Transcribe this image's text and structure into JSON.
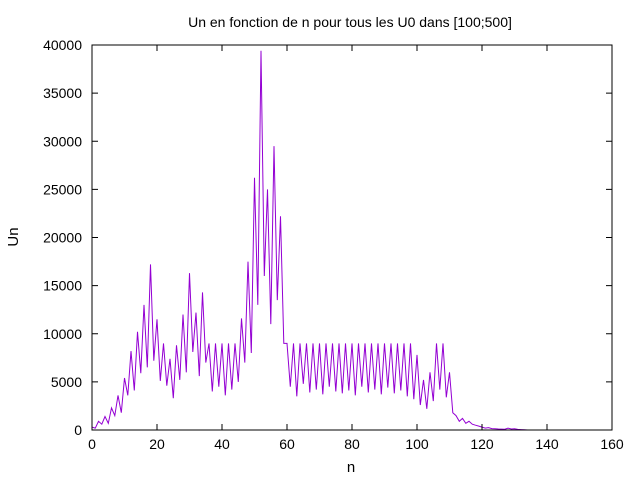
{
  "chart_data": {
    "type": "line",
    "title": "Un en fonction de n pour tous les U0 dans [100;500]",
    "xlabel": "n",
    "ylabel": "Un",
    "xlim": [
      0,
      160
    ],
    "ylim": [
      0,
      40000
    ],
    "xticks": [
      0,
      20,
      40,
      60,
      80,
      100,
      120,
      140,
      160
    ],
    "yticks": [
      0,
      5000,
      10000,
      15000,
      20000,
      25000,
      30000,
      35000,
      40000
    ],
    "grid": false,
    "legend": "none",
    "line_color": "#9400d3",
    "series": [
      {
        "x": [
          0,
          1,
          2,
          3,
          4,
          5,
          6,
          7,
          8,
          9,
          10,
          11,
          12,
          13,
          14,
          15,
          16,
          17,
          18,
          19,
          20,
          21,
          22,
          23,
          24,
          25,
          26,
          27,
          28,
          29,
          30,
          31,
          32,
          33,
          34,
          35,
          36,
          37,
          38,
          39,
          40,
          41,
          42,
          43,
          44,
          45,
          46,
          47,
          48,
          49,
          50,
          51,
          52,
          53,
          54,
          55,
          56,
          57,
          58,
          59,
          60,
          61,
          62,
          63,
          64,
          65,
          66,
          67,
          68,
          69,
          70,
          71,
          72,
          73,
          74,
          75,
          76,
          77,
          78,
          79,
          80,
          81,
          82,
          83,
          84,
          85,
          86,
          87,
          88,
          89,
          90,
          91,
          92,
          93,
          94,
          95,
          96,
          97,
          98,
          99,
          100,
          101,
          102,
          103,
          104,
          105,
          106,
          107,
          108,
          109,
          110,
          111,
          112,
          113,
          114,
          115,
          116,
          117,
          118,
          119,
          120,
          121,
          122,
          123,
          124,
          125,
          126,
          127,
          128,
          129,
          130,
          131,
          132,
          133,
          134
        ],
        "y": [
          300,
          200,
          900,
          600,
          1400,
          700,
          2300,
          1500,
          3600,
          1800,
          5400,
          3600,
          8200,
          4100,
          10200,
          5900,
          13000,
          6500,
          17200,
          7200,
          11500,
          5100,
          9000,
          4600,
          7400,
          3300,
          8800,
          5200,
          12000,
          6000,
          16300,
          8100,
          12200,
          5600,
          14300,
          7000,
          9000,
          4000,
          9000,
          4500,
          9000,
          3600,
          9000,
          4200,
          9000,
          5000,
          11600,
          7000,
          17500,
          8000,
          26200,
          13000,
          39400,
          16000,
          25000,
          11000,
          29500,
          13500,
          22200,
          9000,
          9000,
          4500,
          9000,
          3500,
          9000,
          4800,
          9000,
          3900,
          9000,
          4200,
          9000,
          3700,
          9000,
          4500,
          9000,
          4000,
          9000,
          3800,
          9000,
          4100,
          9000,
          3600,
          9000,
          4500,
          9000,
          3900,
          9000,
          4200,
          9000,
          3700,
          9000,
          4400,
          9000,
          3800,
          9000,
          4100,
          9000,
          3500,
          9000,
          3200,
          7800,
          2600,
          5200,
          2200,
          6000,
          3000,
          9000,
          4200,
          9000,
          3400,
          6000,
          1800,
          1500,
          900,
          1200,
          700,
          900,
          600,
          500,
          400,
          300,
          200,
          250,
          150,
          120,
          100,
          90,
          80,
          200,
          100,
          120,
          60,
          40,
          20,
          0
        ]
      }
    ]
  }
}
